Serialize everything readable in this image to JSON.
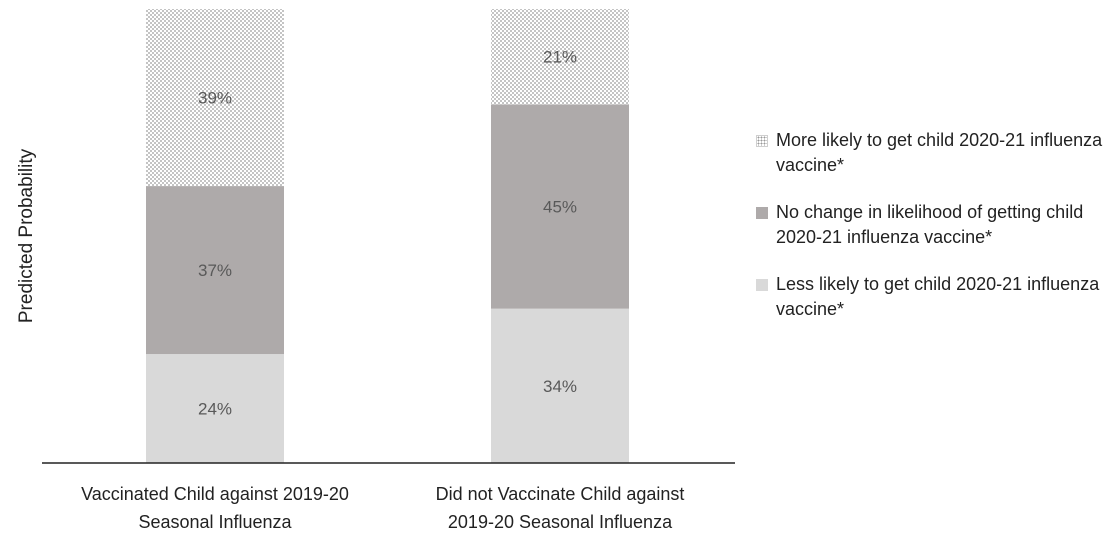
{
  "chart_data": {
    "type": "bar",
    "stacked": true,
    "ylabel": "Predicted Probability",
    "xlabel": "",
    "ylim": [
      0,
      100
    ],
    "categories": [
      "Vaccinated Child against 2019-20 Seasonal Influenza",
      "Did not Vaccinate Child against 2019-20 Seasonal Influenza"
    ],
    "category_label_lines": [
      [
        "Vaccinated Child against 2019-20",
        "Seasonal Influenza"
      ],
      [
        "Did not Vaccinate Child against",
        "2019-20 Seasonal Influenza"
      ]
    ],
    "series": [
      {
        "name": "Less likely to get child 2020-21 influenza vaccine*",
        "values": [
          24,
          34
        ],
        "labels": [
          "24%",
          "34%"
        ],
        "color": "#d9d9d9",
        "pattern": "solid"
      },
      {
        "name": "No change in likelihood of getting child 2020-21 influenza vaccine*",
        "values": [
          37,
          45
        ],
        "labels": [
          "37%",
          "45%"
        ],
        "color": "#aeaaaa",
        "pattern": "solid"
      },
      {
        "name": "More likely to get child 2020-21 influenza vaccine*",
        "values": [
          39,
          21
        ],
        "labels": [
          "39%",
          "21%"
        ],
        "color": "#ffffff",
        "pattern": "dotted"
      }
    ],
    "legend_position": "right",
    "legend_order": [
      2,
      1,
      0
    ],
    "grid": false
  }
}
